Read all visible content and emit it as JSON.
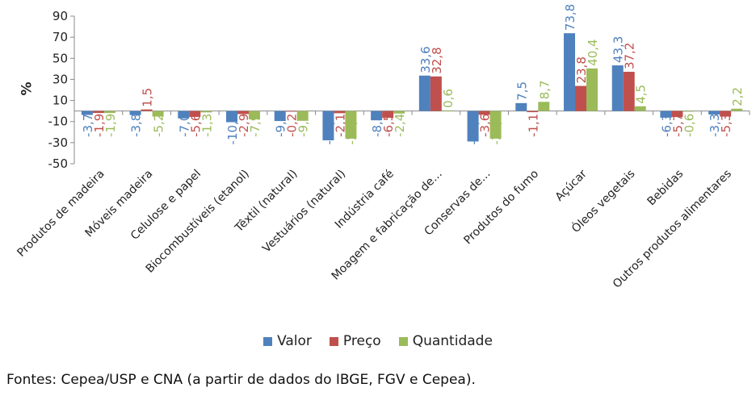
{
  "chart_data": {
    "type": "bar",
    "ylabel": "%",
    "ylim": [
      -50,
      90
    ],
    "yticks": [
      -50,
      -30,
      -10,
      10,
      30,
      50,
      70,
      90
    ],
    "grid": false,
    "legend_position": "bottom",
    "categories": [
      "Produtos de madeira",
      "Móveis madeira",
      "Celulose e papel",
      "Biocombustíveis (etanol)",
      "Têxtil (natural)",
      "Vestuários (natural)",
      "Indústria café",
      "Moagem e fabricação de...",
      "Conservas de...",
      "Produtos do fumo",
      "Açúcar",
      "Óleos vegetais",
      "Bebidas",
      "Outros produtos alimentares"
    ],
    "series": [
      {
        "name": "Valor",
        "color": "#4f81bd",
        "values": [
          -3.7,
          -3.8,
          -7.0,
          -10.6,
          -9.5,
          -27.8,
          -8.8,
          33.6,
          -28.9,
          7.5,
          73.8,
          43.3,
          -6.3,
          -3.3
        ],
        "labels": [
          "-3,7",
          "-3,8",
          "-7,0",
          "-10,6",
          "-9,5",
          "-27,8",
          "-8,8",
          "33,6",
          "-28,9",
          "7,5",
          "73,8",
          "43,3",
          "-6,3",
          "-3,3"
        ]
      },
      {
        "name": "Preço",
        "color": "#c0504d",
        "values": [
          -1.9,
          1.5,
          -5.6,
          -2.9,
          -0.2,
          -2.1,
          -6.5,
          32.8,
          -3.6,
          -1.1,
          23.8,
          37.2,
          -5.7,
          -5.3
        ],
        "labels": [
          "-1,9",
          "1,5",
          "-5,6",
          "-2,9",
          "-0,2",
          "-2,1",
          "-6,5",
          "32,8",
          "-3,6",
          "-1,1",
          "23,8",
          "37,2",
          "-5,7",
          "-5,3"
        ]
      },
      {
        "name": "Quantidade",
        "color": "#9bbb59",
        "values": [
          -1.9,
          -5.2,
          -1.3,
          -7.9,
          -9.3,
          -26.2,
          -2.4,
          0.6,
          -26.2,
          8.7,
          40.4,
          4.5,
          -0.6,
          2.2
        ],
        "labels": [
          "-1,9",
          "-5,2",
          "-1,3",
          "-7,9",
          "-9,3",
          "-26,2",
          "-2,4",
          "0,6",
          "-26,2",
          "8,7",
          "40,4",
          "4,5",
          "-0,6",
          "2,2"
        ]
      }
    ]
  },
  "legend": {
    "items": [
      {
        "label": "Valor",
        "color": "#4f81bd"
      },
      {
        "label": "Preço",
        "color": "#c0504d"
      },
      {
        "label": "Quantidade",
        "color": "#9bbb59"
      }
    ]
  },
  "source_text": "Fontes: Cepea/USP e CNA (a partir de dados do IBGE, FGV e Cepea)."
}
